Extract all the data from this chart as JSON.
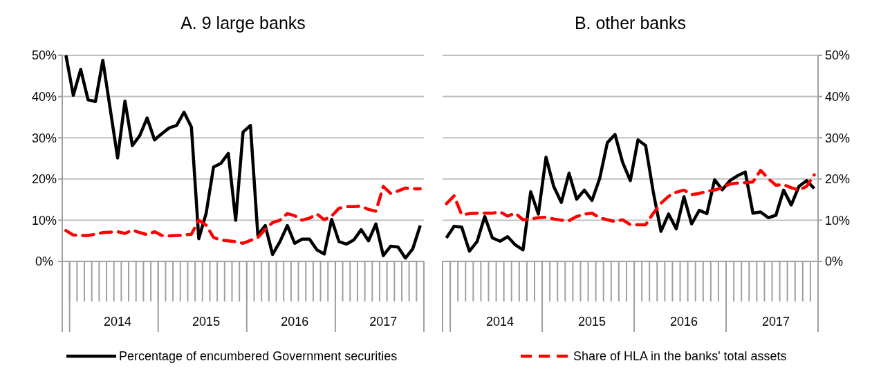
{
  "chart_data": [
    {
      "type": "line",
      "title": "A. 9 large banks",
      "categories": [
        null,
        null,
        null,
        null,
        null,
        null,
        null,
        "2014",
        null,
        null,
        null,
        null,
        null,
        null,
        null,
        null,
        null,
        null,
        null,
        "2015",
        null,
        null,
        null,
        null,
        null,
        null,
        null,
        null,
        null,
        null,
        null,
        "2016",
        null,
        null,
        null,
        null,
        null,
        null,
        null,
        null,
        null,
        null,
        null,
        "2017",
        null,
        null,
        null,
        null,
        null
      ],
      "series": [
        {
          "name": "Percentage of encumbered Government securities",
          "color": "#000000",
          "line_style": "solid",
          "values": [
            50,
            40.3,
            46.6,
            39.2,
            38.8,
            48.8,
            37,
            25.1,
            38.9,
            28.1,
            30.5,
            34.8,
            29.5,
            31.0,
            32.4,
            33.0,
            36.2,
            32.6,
            5.5,
            11.7,
            22.9,
            23.8,
            26.2,
            10.0,
            31.4,
            33.0,
            6.4,
            8.7,
            1.7,
            4.8,
            8.7,
            4.4,
            5.4,
            5.4,
            2.8,
            1.8,
            10.2,
            4.8,
            4.2,
            5.2,
            7.7,
            5.0,
            9.1,
            1.4,
            3.7,
            3.5,
            0.8,
            3.1,
            8.7
          ]
        },
        {
          "name": "Share of HLA in the banks' total assets",
          "color": "#ff0000",
          "line_style": "dashed",
          "values": [
            7.5,
            6.4,
            6.3,
            6.3,
            6.6,
            7.0,
            7.1,
            7.2,
            6.8,
            7.6,
            7.0,
            6.5,
            7.2,
            6.3,
            6.2,
            6.3,
            6.4,
            6.6,
            10.0,
            8.8,
            5.8,
            5.2,
            5.0,
            4.8,
            4.4,
            5.1,
            5.8,
            7.8,
            9.4,
            10.0,
            11.6,
            11.1,
            10.0,
            10.5,
            11.5,
            10.1,
            11.0,
            12.9,
            13.3,
            13.3,
            13.4,
            12.6,
            12.2,
            18.2,
            16.5,
            17.1,
            17.8,
            17.6,
            17.6
          ]
        }
      ],
      "ylim": [
        0,
        50
      ],
      "yticks": [
        {
          "value": 0,
          "label": "0%"
        },
        {
          "value": 10,
          "label": "10%"
        },
        {
          "value": 20,
          "label": "20%"
        },
        {
          "value": 30,
          "label": "30%"
        },
        {
          "value": 40,
          "label": "40%"
        },
        {
          "value": 50,
          "label": "50%"
        }
      ],
      "grid": "y",
      "legend": "bottom"
    },
    {
      "type": "line",
      "title": "B. other banks",
      "categories": [
        null,
        null,
        null,
        null,
        null,
        null,
        null,
        "2014",
        null,
        null,
        null,
        null,
        null,
        null,
        null,
        null,
        null,
        null,
        null,
        "2015",
        null,
        null,
        null,
        null,
        null,
        null,
        null,
        null,
        null,
        null,
        null,
        "2016",
        null,
        null,
        null,
        null,
        null,
        null,
        null,
        null,
        null,
        null,
        null,
        "2017",
        null,
        null,
        null,
        null,
        null
      ],
      "series": [
        {
          "color": "#000000",
          "line_style": "solid",
          "axis": "y2",
          "values": [
            5.7,
            8.5,
            8.3,
            2.5,
            4.8,
            10.9,
            5.7,
            4.9,
            6.0,
            4.0,
            2.8,
            16.9,
            11.5,
            25.3,
            18.2,
            14.3,
            21.4,
            15.1,
            17.3,
            14.8,
            20.1,
            28.8,
            30.8,
            24.0,
            19.6,
            29.5,
            28.1,
            16.8,
            7.3,
            11.5,
            7.9,
            15.7,
            9.1,
            12.4,
            11.6,
            19.8,
            17.4,
            19.6,
            20.8,
            21.7,
            11.7,
            12.0,
            10.6,
            11.2,
            17.3,
            13.7,
            18.2,
            19.6,
            17.7
          ]
        },
        {
          "color": "#ff0000",
          "line_style": "dashed",
          "axis": "y2",
          "values": [
            14.0,
            15.9,
            11.3,
            11.6,
            11.7,
            11.7,
            11.7,
            12.0,
            11.0,
            11.7,
            10.1,
            10.3,
            10.6,
            10.7,
            10.3,
            10.0,
            9.9,
            10.9,
            11.5,
            11.7,
            10.6,
            10.1,
            9.7,
            10.1,
            8.9,
            8.9,
            8.9,
            11.7,
            14.1,
            15.8,
            16.8,
            17.3,
            16.2,
            16.5,
            17.0,
            17.3,
            17.9,
            18.8,
            19.0,
            19.1,
            19.3,
            22.1,
            20.1,
            18.5,
            18.6,
            17.9,
            17.3,
            18.2,
            21.0
          ]
        }
      ],
      "y2lim": [
        0,
        50
      ],
      "y2ticks": [
        {
          "value": 0,
          "label": "0%"
        },
        {
          "value": 10,
          "label": "10%"
        },
        {
          "value": 20,
          "label": "20%"
        },
        {
          "value": 30,
          "label": "30%"
        },
        {
          "value": 40,
          "label": "40%"
        },
        {
          "value": 50,
          "label": "50%"
        }
      ],
      "grid": "y"
    }
  ]
}
